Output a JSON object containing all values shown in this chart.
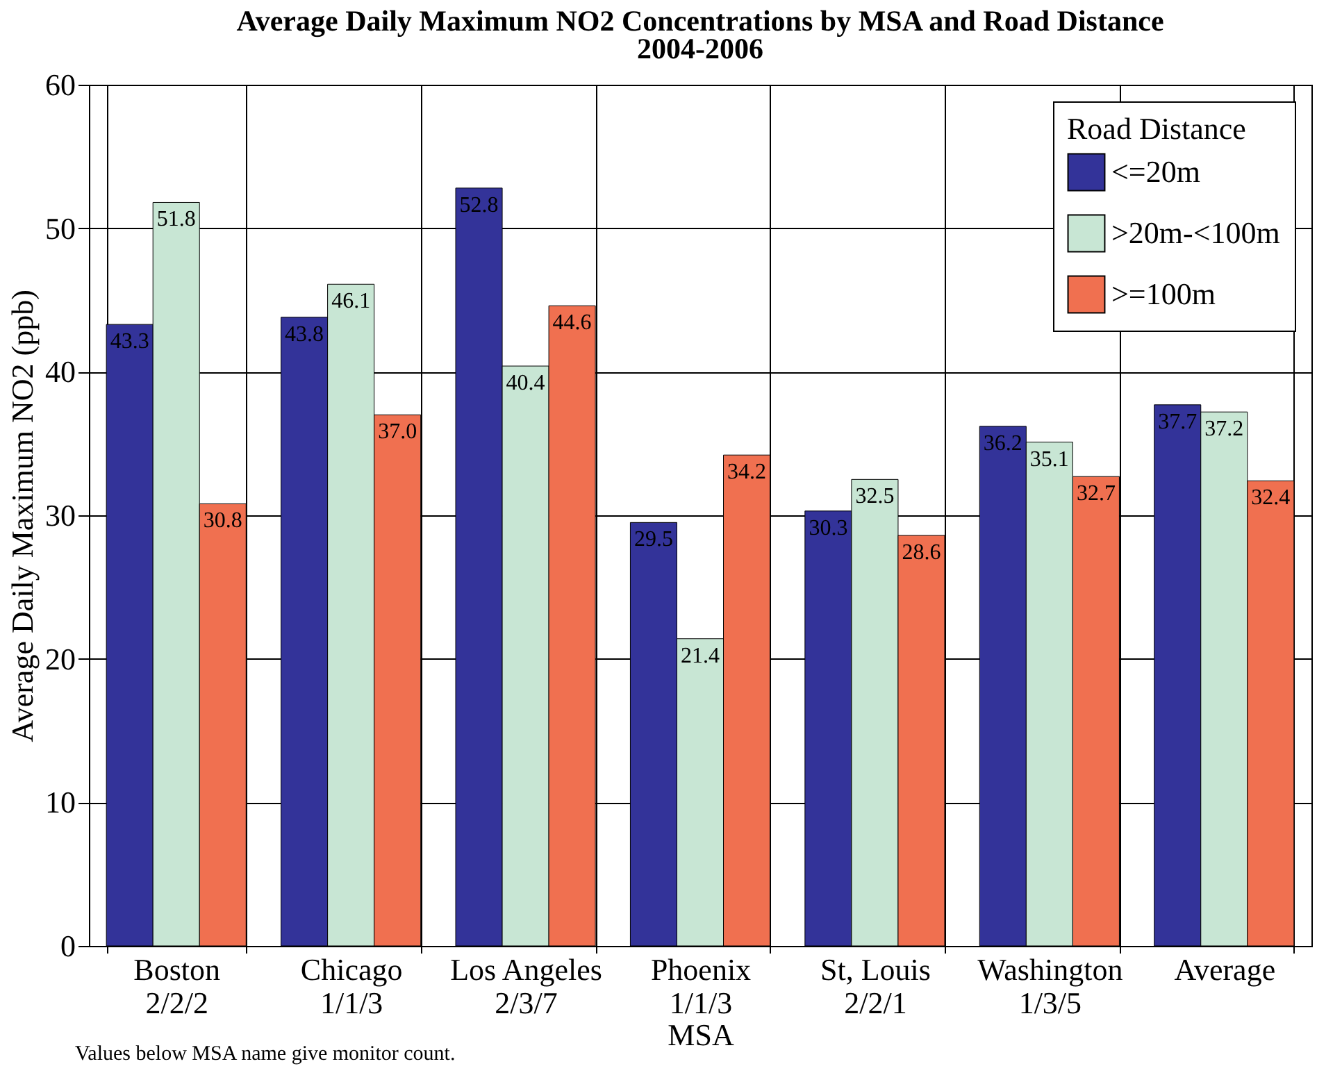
{
  "chart_data": {
    "type": "bar",
    "title": "Average Daily Maximum NO2 Concentrations by MSA and Road Distance\n2004-2006",
    "xlabel": "MSA",
    "ylabel": "Average Daily Maximum NO2 (ppb)",
    "legend_title": "Road Distance",
    "legend": "top right",
    "grid": true,
    "categories": [
      "Boston\n2/2/2",
      "Chicago\n1/1/3",
      "Los Angeles\n2/3/7",
      "Phoenix\n1/1/3",
      "St, Louis\n2/2/1",
      "Washington\n1/3/5",
      "Average"
    ],
    "series": [
      {
        "name": "<=20m",
        "color": "#333399",
        "values": [
          43.3,
          43.8,
          52.8,
          29.5,
          30.3,
          36.2,
          37.7
        ],
        "value_labels": [
          "43.3",
          "43.8",
          "52.8",
          "29.5",
          "30.3",
          "36.2",
          "37.7"
        ]
      },
      {
        "name": ">20m-<100m",
        "color": "#c8e6d4",
        "values": [
          51.8,
          46.1,
          40.4,
          21.4,
          32.5,
          35.1,
          37.2
        ],
        "value_labels": [
          "51.8",
          "46.1",
          "40.4",
          "21.4",
          "32.5",
          "35.1",
          "37.2"
        ]
      },
      {
        "name": ">=100m",
        "color": "#f07050",
        "values": [
          30.8,
          37.0,
          44.6,
          34.2,
          28.6,
          32.7,
          32.4
        ],
        "value_labels": [
          "30.8",
          "37.0",
          "44.6",
          "34.2",
          "28.6",
          "32.7",
          "32.4"
        ]
      }
    ],
    "ylim": [
      0,
      60
    ],
    "yticks": [
      0,
      10,
      20,
      30,
      40,
      50,
      60
    ],
    "annotations": [
      "Values below MSA name give monitor count."
    ]
  }
}
